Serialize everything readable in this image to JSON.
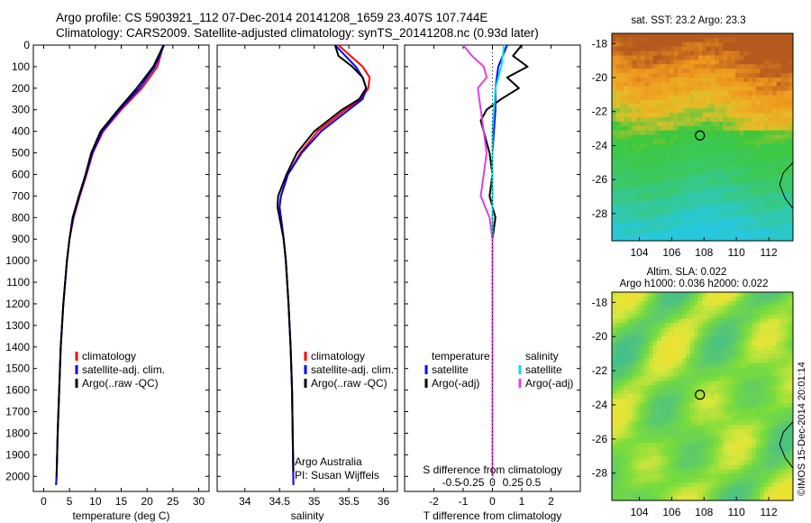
{
  "header": {
    "title_line1": "Argo profile: CS 5903921_112 07-Dec-2014 20141208_1659 23.407S 107.744E",
    "title_line2": "Climatology: CARS2009. Satellite-adjusted climatology: synTS_20141208.nc (0.93d later)"
  },
  "side_label": "©IMOS 15-Dec-2014 20:01:14",
  "colors": {
    "climatology": "#ff0000",
    "satellite": "#0000ff",
    "argo": "#000000",
    "sal_satellite": "#00e5e5",
    "sal_argo": "#e040e0"
  },
  "chart_data": [
    {
      "type": "line",
      "xlabel": "temperature (deg C)",
      "xticks": [
        0,
        5,
        10,
        15,
        20,
        25,
        30
      ],
      "xlim": [
        -2,
        32
      ],
      "ylim": [
        2070,
        0
      ],
      "yticks": [
        0,
        100,
        200,
        300,
        400,
        500,
        600,
        700,
        800,
        900,
        1000,
        1100,
        1200,
        1300,
        1400,
        1500,
        1600,
        1700,
        1800,
        1900,
        2000
      ],
      "legend": [
        "climatology",
        "satellite-adj. clim.",
        "Argo(..raw -QC)"
      ],
      "series": [
        {
          "name": "climatology",
          "depth": [
            0,
            100,
            200,
            300,
            400,
            500,
            600,
            700,
            800,
            900,
            1000,
            1200,
            1400,
            1600,
            1800,
            2000,
            2040
          ],
          "values": [
            23.2,
            22.0,
            19.0,
            15.0,
            11.5,
            9.5,
            8.3,
            7.0,
            5.8,
            5.0,
            4.5,
            3.8,
            3.3,
            3.0,
            2.7,
            2.5,
            2.4
          ]
        },
        {
          "name": "satellite-adj. clim.",
          "depth": [
            0,
            100,
            200,
            300,
            400,
            500,
            600,
            700,
            800,
            900,
            1000,
            1200,
            1400,
            1600,
            1800,
            2000,
            2040
          ],
          "values": [
            23.3,
            21.5,
            18.5,
            14.7,
            11.3,
            9.4,
            8.2,
            6.9,
            5.7,
            5.0,
            4.5,
            3.8,
            3.3,
            3.0,
            2.7,
            2.5,
            2.4
          ]
        },
        {
          "name": "Argo(..raw -QC)",
          "depth": [
            0,
            100,
            200,
            300,
            400,
            500,
            600,
            700,
            800,
            900,
            1000,
            1200,
            1400,
            1600,
            1800,
            2000
          ],
          "values": [
            23.2,
            21.2,
            18.0,
            14.4,
            11.0,
            9.2,
            8.1,
            6.8,
            5.6,
            5.0,
            4.5,
            3.8,
            3.3,
            3.0,
            2.7,
            2.5
          ]
        }
      ]
    },
    {
      "type": "line",
      "xlabel": "salinity",
      "xticks": [
        34,
        34.5,
        35,
        35.5,
        36
      ],
      "xlim": [
        33.6,
        36.2
      ],
      "ylim": [
        2070,
        0
      ],
      "legend": [
        "climatology",
        "satellite-adj. clim.",
        "Argo(..raw -QC)"
      ],
      "annotations": [
        "Argo Australia",
        "PI: Susan Wijffels"
      ],
      "series": [
        {
          "name": "climatology",
          "depth": [
            0,
            100,
            150,
            200,
            250,
            300,
            400,
            500,
            600,
            700,
            750,
            800,
            900,
            1000,
            1200,
            1400,
            1600,
            1800,
            2040
          ],
          "values": [
            35.35,
            35.7,
            35.8,
            35.78,
            35.68,
            35.45,
            35.05,
            34.8,
            34.62,
            34.52,
            34.5,
            34.52,
            34.56,
            34.59,
            34.63,
            34.66,
            34.68,
            34.69,
            34.7
          ]
        },
        {
          "name": "satellite-adj. clim.",
          "depth": [
            0,
            100,
            150,
            200,
            250,
            300,
            400,
            500,
            600,
            700,
            750,
            800,
            900,
            1000,
            1200,
            1400,
            1600,
            1800,
            2040
          ],
          "values": [
            35.3,
            35.6,
            35.7,
            35.75,
            35.7,
            35.5,
            35.1,
            34.82,
            34.62,
            34.52,
            34.5,
            34.52,
            34.56,
            34.59,
            34.63,
            34.66,
            34.68,
            34.69,
            34.7
          ]
        },
        {
          "name": "Argo(..raw -QC)",
          "depth": [
            0,
            50,
            100,
            150,
            200,
            250,
            300,
            400,
            500,
            600,
            700,
            750,
            800,
            900,
            1000,
            1200,
            1400,
            1600,
            1800,
            1980
          ],
          "values": [
            35.3,
            35.35,
            35.55,
            35.7,
            35.75,
            35.65,
            35.4,
            35.0,
            34.75,
            34.6,
            34.48,
            34.47,
            34.5,
            34.56,
            34.59,
            34.63,
            34.66,
            34.68,
            34.69,
            34.7
          ]
        }
      ]
    },
    {
      "type": "line",
      "xlabel": "T difference from climatology",
      "xlabel_top": "S difference from climatology",
      "xticks": [
        -2,
        -1,
        0,
        1,
        2
      ],
      "xticks_s": [
        "-0.5",
        "-0.25",
        "0",
        "0.25",
        "0.5"
      ],
      "xlim": [
        -3,
        3
      ],
      "ylim": [
        2070,
        0
      ],
      "legend_temperature": [
        "temperature",
        "satellite",
        "Argo(-adj)"
      ],
      "legend_salinity": [
        "salinity",
        "satellite",
        "Argo(-adj)"
      ],
      "series": [
        {
          "name": "satellite",
          "depth": [
            0,
            100,
            200,
            300,
            400,
            500,
            600,
            800,
            1000,
            1500,
            2000
          ],
          "values": [
            0.5,
            0.2,
            0.1,
            0.1,
            0.05,
            0.0,
            0.0,
            0.0,
            0.0,
            0.0,
            0.0
          ]
        },
        {
          "name": "Argo(-adj)",
          "depth": [
            0,
            50,
            100,
            150,
            200,
            250,
            300,
            350,
            400,
            450,
            500,
            600,
            700,
            800,
            900,
            1000,
            1500,
            2000
          ],
          "values": [
            1.0,
            0.7,
            1.2,
            0.5,
            0.9,
            0.3,
            -0.2,
            -0.4,
            -0.3,
            -0.2,
            -0.1,
            0.0,
            -0.1,
            0.1,
            0.0,
            0.0,
            0.0,
            0.0
          ]
        },
        {
          "name": "salinity satellite",
          "depth": [
            0,
            100,
            200,
            300,
            400,
            600,
            800,
            1000,
            1500,
            2000
          ],
          "values": [
            0.4,
            0.3,
            0.1,
            0.05,
            0.0,
            0.0,
            0.0,
            0.0,
            0.0,
            0.0
          ]
        },
        {
          "name": "salinity Argo(-adj)",
          "depth": [
            0,
            50,
            100,
            150,
            200,
            300,
            400,
            500,
            600,
            700,
            800,
            900,
            1000,
            1500,
            2000
          ],
          "values": [
            -1.0,
            -0.7,
            -0.3,
            -0.2,
            -0.5,
            -0.4,
            -0.3,
            -0.2,
            -0.3,
            -0.4,
            -0.1,
            0.0,
            0.0,
            0.0,
            0.0
          ]
        }
      ]
    },
    {
      "type": "heatmap",
      "title": "sat. SST: 23.2  Argo: 23.3",
      "xticks": [
        104,
        106,
        108,
        110,
        112
      ],
      "yticks": [
        -18,
        -20,
        -22,
        -24,
        -26,
        -28
      ],
      "xlim": [
        102.3,
        113.5
      ],
      "ylim": [
        -29.6,
        -17.4
      ],
      "marker": [
        107.744,
        -23.407
      ]
    },
    {
      "type": "heatmap",
      "title_line1": "Altim. SLA: 0.022",
      "title_line2": "Argo h1000: 0.036 h2000: 0.022",
      "xticks": [
        104,
        106,
        108,
        110,
        112
      ],
      "yticks": [
        -18,
        -20,
        -22,
        -24,
        -26,
        -28
      ],
      "xlim": [
        102.3,
        113.5
      ],
      "ylim": [
        -29.6,
        -17.4
      ],
      "marker": [
        107.744,
        -23.407
      ]
    }
  ]
}
